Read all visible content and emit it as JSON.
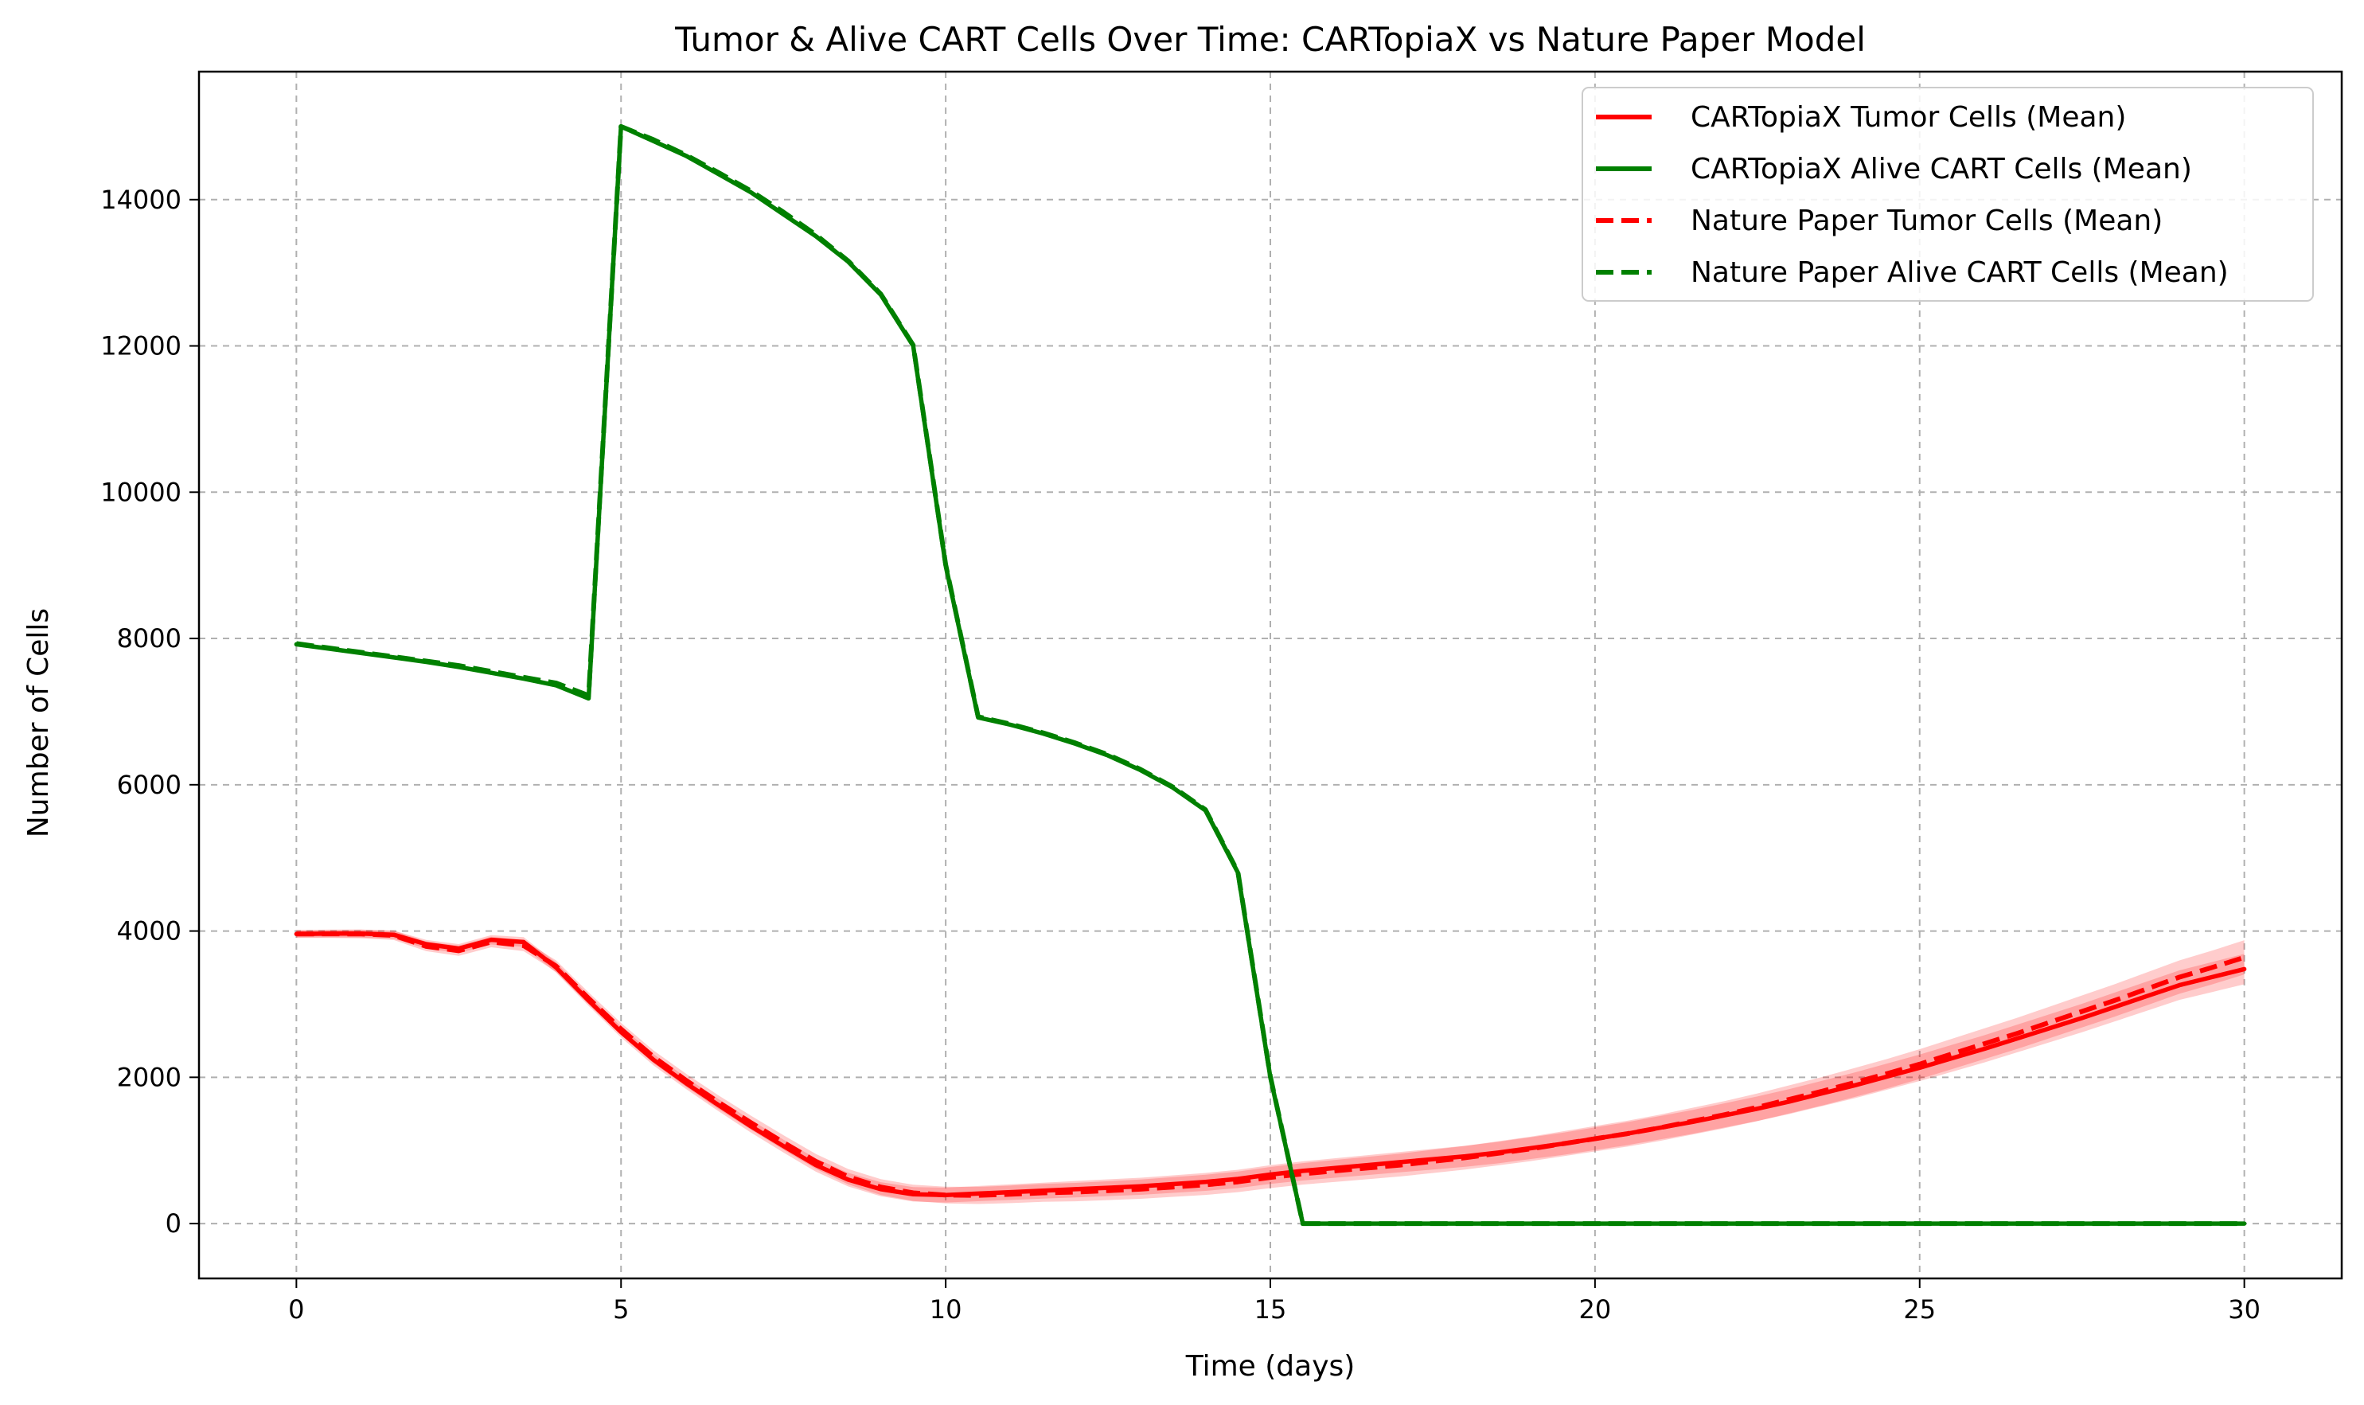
{
  "chart_data": {
    "type": "line",
    "title": "Tumor & Alive CART Cells Over Time: CARTopiaX vs Nature Paper Model",
    "xlabel": "Time (days)",
    "ylabel": "Number of Cells",
    "xlim": [
      -1.5,
      31.5
    ],
    "ylim": [
      -750,
      15750
    ],
    "xticks": [
      0,
      5,
      10,
      15,
      20,
      25,
      30
    ],
    "yticks": [
      0,
      2000,
      4000,
      6000,
      8000,
      10000,
      12000,
      14000
    ],
    "grid": true,
    "legend_position": "top-right",
    "x": [
      0,
      0.5,
      1,
      1.5,
      2,
      2.5,
      3,
      3.5,
      4,
      4.5,
      5,
      5.5,
      6,
      6.5,
      7,
      7.5,
      8,
      8.5,
      9,
      9.5,
      10,
      10.5,
      11,
      11.5,
      12,
      12.5,
      13,
      13.5,
      14,
      14.5,
      15,
      15.5,
      16,
      16.5,
      17,
      17.5,
      18,
      18.5,
      19,
      19.5,
      20,
      20.5,
      21,
      21.5,
      22,
      22.5,
      23,
      23.5,
      24,
      24.5,
      25,
      25.5,
      26,
      26.5,
      27,
      27.5,
      28,
      28.5,
      29,
      29.5,
      30
    ],
    "series": [
      {
        "name": "CARTopiaX Tumor Cells (Mean)",
        "color": "#ff0000",
        "style": "solid",
        "values": [
          3960,
          3965,
          3965,
          3950,
          3820,
          3760,
          3880,
          3850,
          3500,
          3050,
          2620,
          2240,
          1920,
          1620,
          1330,
          1060,
          800,
          600,
          470,
          400,
          390,
          410,
          430,
          450,
          470,
          490,
          510,
          540,
          570,
          610,
          670,
          720,
          760,
          800,
          840,
          880,
          920,
          970,
          1030,
          1090,
          1160,
          1230,
          1310,
          1390,
          1480,
          1570,
          1670,
          1780,
          1890,
          2010,
          2130,
          2260,
          2390,
          2530,
          2670,
          2810,
          2960,
          3110,
          3260,
          3370,
          3480
        ],
        "band": 160
      },
      {
        "name": "CARTopiaX Alive CART Cells (Mean)",
        "color": "#008000",
        "style": "solid",
        "values": [
          7920,
          7860,
          7800,
          7740,
          7680,
          7610,
          7530,
          7450,
          7360,
          7180,
          15000,
          14800,
          14600,
          14350,
          14100,
          13800,
          13500,
          13150,
          12700,
          12000,
          9000,
          6920,
          6820,
          6700,
          6560,
          6400,
          6200,
          5960,
          5650,
          4800,
          2000,
          0,
          0,
          0,
          0,
          0,
          0,
          0,
          0,
          0,
          0,
          0,
          0,
          0,
          0,
          0,
          0,
          0,
          0,
          0,
          0,
          0,
          0,
          0,
          0,
          0,
          0,
          0,
          0,
          0,
          0
        ]
      },
      {
        "name": "Nature Paper Tumor Cells (Mean)",
        "color": "#ff0000",
        "style": "dashed",
        "values": [
          3960,
          3962,
          3960,
          3940,
          3790,
          3730,
          3850,
          3800,
          3520,
          3080,
          2660,
          2280,
          1960,
          1660,
          1380,
          1110,
          850,
          640,
          500,
          420,
          390,
          385,
          400,
          420,
          430,
          450,
          470,
          500,
          530,
          570,
          630,
          680,
          720,
          760,
          800,
          850,
          900,
          960,
          1020,
          1090,
          1160,
          1230,
          1310,
          1400,
          1490,
          1590,
          1700,
          1810,
          1930,
          2050,
          2180,
          2320,
          2460,
          2600,
          2750,
          2900,
          3050,
          3210,
          3370,
          3500,
          3640
        ],
        "band": 180
      },
      {
        "name": "Nature Paper Alive CART Cells (Mean)",
        "color": "#008000",
        "style": "dashed",
        "values": [
          7930,
          7870,
          7810,
          7750,
          7690,
          7630,
          7550,
          7470,
          7390,
          7220,
          15000,
          14820,
          14610,
          14370,
          14120,
          13830,
          13520,
          13160,
          12710,
          12010,
          9010,
          6930,
          6830,
          6710,
          6570,
          6410,
          6210,
          5970,
          5660,
          4810,
          2010,
          0,
          0,
          0,
          0,
          0,
          0,
          0,
          0,
          0,
          0,
          0,
          0,
          0,
          0,
          0,
          0,
          0,
          0,
          0,
          0,
          0,
          0,
          0,
          0,
          0,
          0,
          0,
          0,
          0,
          0
        ]
      }
    ]
  }
}
